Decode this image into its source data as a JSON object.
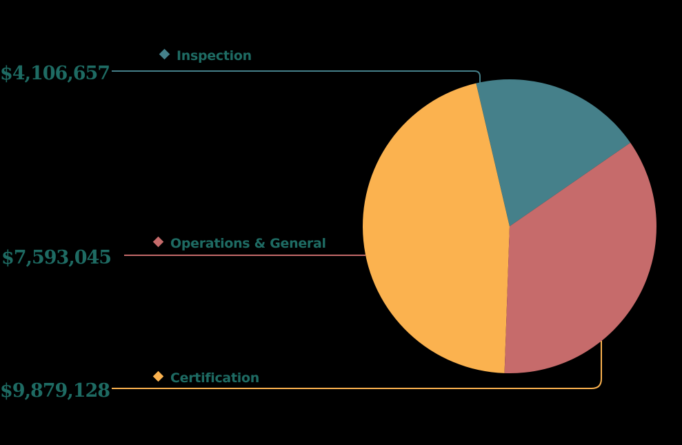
{
  "chart_data": {
    "type": "pie",
    "title": "",
    "start_angle_deg": 182,
    "series": [
      {
        "name": "Inspection",
        "value": 4106657,
        "value_label": "$4,106,657",
        "color": "#45808A"
      },
      {
        "name": "Operations & General",
        "value": 7593045,
        "value_label": "$7,593,045",
        "color": "#C66B6B"
      },
      {
        "name": "Certification",
        "value": 9879128,
        "value_label": "$9,879,128",
        "color": "#FBB24F"
      }
    ],
    "colors": {
      "background": "#000000",
      "label_text": "#1E6B63"
    }
  }
}
